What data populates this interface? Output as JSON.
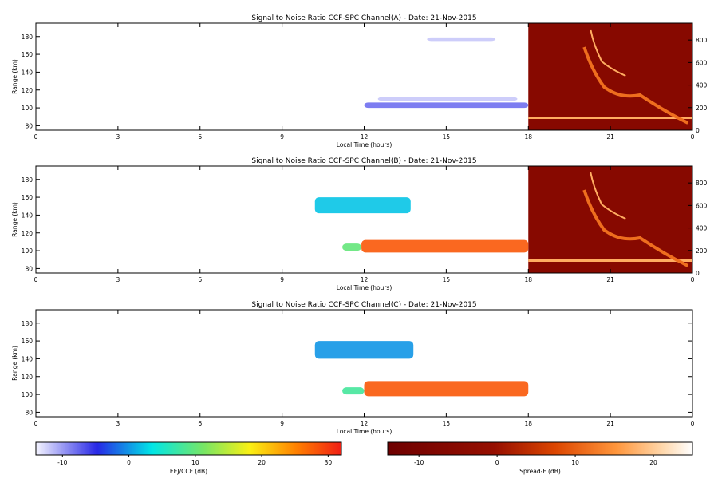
{
  "chart_data": [
    {
      "type": "heatmap",
      "title": "Signal to Noise Ratio CCF-SPC Channel(A) - Date: 21-Nov-2015",
      "xlabel": "Local Time (hours)",
      "ylabel": "Range (km)",
      "xlim": [
        0,
        24
      ],
      "xticks": [
        "0",
        "3",
        "6",
        "9",
        "12",
        "15",
        "18",
        "21",
        "0"
      ],
      "ylim": [
        75,
        195
      ],
      "yticks": [
        "80",
        "100",
        "120",
        "140",
        "160",
        "180"
      ],
      "y2lim": [
        0,
        950
      ],
      "y2ticks": [
        "0",
        "200",
        "400",
        "600",
        "800"
      ],
      "eej_blobs": [
        {
          "t0": 12.0,
          "t1": 18.0,
          "h0": 100,
          "h1": 106,
          "snr": -8
        },
        {
          "t0": 12.5,
          "t1": 17.6,
          "h0": 108,
          "h1": 112,
          "snr": -12
        },
        {
          "t0": 14.3,
          "t1": 16.8,
          "h0": 175,
          "h1": 179,
          "snr": -12
        }
      ],
      "spread_f": true
    },
    {
      "type": "heatmap",
      "title": "Signal to Noise Ratio CCF-SPC Channel(B) - Date: 21-Nov-2015",
      "xlabel": "Local Time (hours)",
      "ylabel": "Range (km)",
      "xlim": [
        0,
        24
      ],
      "xticks": [
        "0",
        "3",
        "6",
        "9",
        "12",
        "15",
        "18",
        "21",
        "0"
      ],
      "ylim": [
        75,
        195
      ],
      "yticks": [
        "80",
        "100",
        "120",
        "140",
        "160",
        "180"
      ],
      "y2lim": [
        0,
        950
      ],
      "y2ticks": [
        "0",
        "200",
        "400",
        "600",
        "800"
      ],
      "eej_blobs": [
        {
          "t0": 10.2,
          "t1": 13.7,
          "h0": 142,
          "h1": 160,
          "snr": 2
        },
        {
          "t0": 11.2,
          "t1": 11.9,
          "h0": 100,
          "h1": 108,
          "snr": 10
        },
        {
          "t0": 11.9,
          "t1": 18.0,
          "h0": 98,
          "h1": 112,
          "snr": 28
        }
      ],
      "spread_f": true
    },
    {
      "type": "heatmap",
      "title": "Signal to Noise Ratio CCF-SPC Channel(C) - Date: 21-Nov-2015",
      "xlabel": "Local Time (hours)",
      "ylabel": "Range (km)",
      "xlim": [
        0,
        24
      ],
      "xticks": [
        "0",
        "3",
        "6",
        "9",
        "12",
        "15",
        "18",
        "21",
        "0"
      ],
      "ylim": [
        75,
        195
      ],
      "yticks": [
        "80",
        "100",
        "120",
        "140",
        "160",
        "180"
      ],
      "eej_blobs": [
        {
          "t0": 10.2,
          "t1": 13.8,
          "h0": 140,
          "h1": 160,
          "snr": 0
        },
        {
          "t0": 11.2,
          "t1": 12.0,
          "h0": 100,
          "h1": 108,
          "snr": 8
        },
        {
          "t0": 12.0,
          "t1": 18.0,
          "h0": 98,
          "h1": 115,
          "snr": 28
        }
      ],
      "spread_f": false
    }
  ],
  "colorbars": [
    {
      "label": "EEJ/CCF (dB)",
      "ticks": [
        "-10",
        "0",
        "10",
        "20",
        "30"
      ],
      "range": [
        -14,
        32
      ]
    },
    {
      "label": "Spread-F (dB)",
      "ticks": [
        "-10",
        "0",
        "10",
        "20"
      ],
      "range": [
        -14,
        25
      ]
    }
  ]
}
